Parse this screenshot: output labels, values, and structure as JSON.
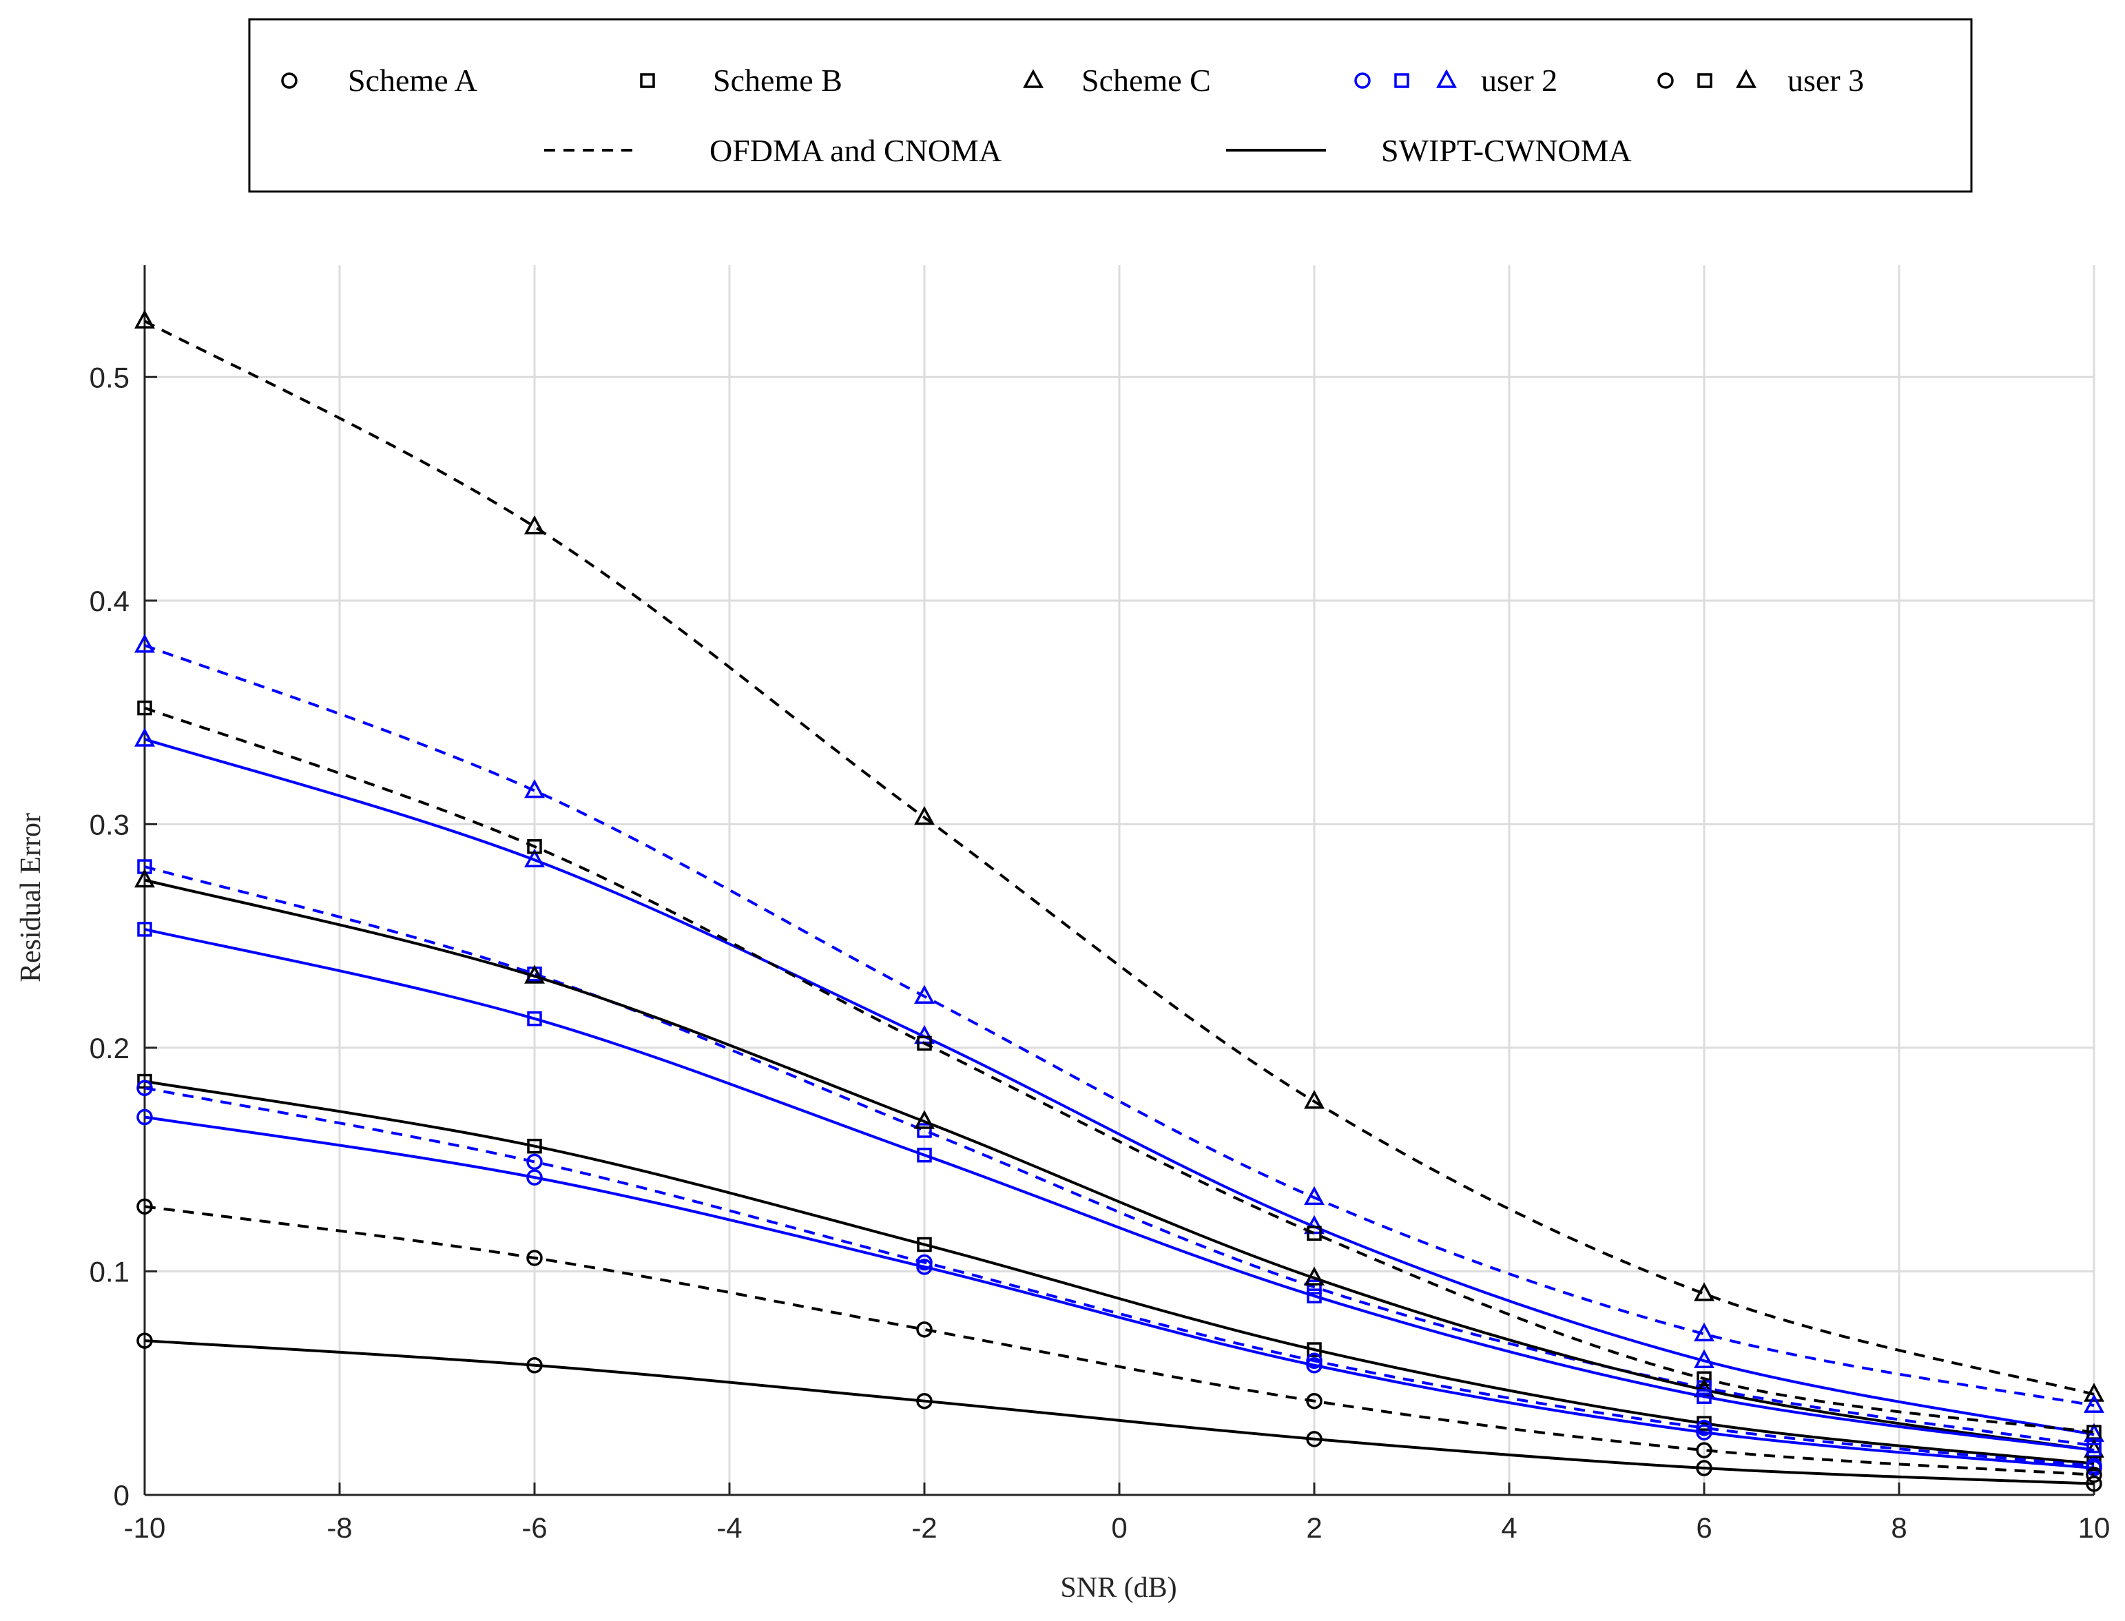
{
  "chart_data": {
    "type": "line",
    "title": "",
    "xlabel": "SNR (dB)",
    "ylabel": "Residual Error",
    "xlim": [
      -10,
      10
    ],
    "ylim": [
      0,
      0.55
    ],
    "grid": true,
    "x_ticks": [
      -10,
      -8,
      -6,
      -4,
      -2,
      0,
      2,
      4,
      6,
      8,
      10
    ],
    "x_tick_labels": [
      "-10",
      "-8",
      "-6",
      "-4",
      "-2",
      "0",
      "2",
      "4",
      "6",
      "8",
      "10"
    ],
    "y_ticks": [
      0,
      0.1,
      0.2,
      0.3,
      0.4,
      0.5
    ],
    "y_tick_labels": [
      "0",
      "0.1",
      "0.2",
      "0.3",
      "0.4",
      "0.5"
    ],
    "x": [
      -10,
      -6,
      -2,
      2,
      6,
      10
    ],
    "legend": {
      "placement": "top-outside",
      "entries": [
        {
          "label": "Scheme A",
          "markers": [
            "circle"
          ],
          "color": "#000000"
        },
        {
          "label": "Scheme B",
          "markers": [
            "square"
          ],
          "color": "#000000"
        },
        {
          "label": "Scheme C",
          "markers": [
            "triangle"
          ],
          "color": "#000000"
        },
        {
          "label": "user 2",
          "markers": [
            "circle",
            "square",
            "triangle"
          ],
          "color": "#0000ff"
        },
        {
          "label": "user 3",
          "markers": [
            "circle",
            "square",
            "triangle"
          ],
          "color": "#000000"
        },
        {
          "label": "OFDMA and CNOMA",
          "line": "dashed",
          "color": "#000000"
        },
        {
          "label": "SWIPT-CWNOMA",
          "line": "solid",
          "color": "#000000"
        }
      ]
    },
    "series": [
      {
        "name": "user 3, Scheme C, OFDMA and CNOMA",
        "user": 3,
        "scheme": "C",
        "method": "OFDMA and CNOMA",
        "color": "#000000",
        "dash": true,
        "marker": "triangle",
        "values": [
          0.525,
          0.433,
          0.303,
          0.176,
          0.09,
          0.045
        ]
      },
      {
        "name": "user 2, Scheme C, OFDMA and CNOMA",
        "user": 2,
        "scheme": "C",
        "method": "OFDMA and CNOMA",
        "color": "#0000ff",
        "dash": true,
        "marker": "triangle",
        "values": [
          0.38,
          0.315,
          0.223,
          0.133,
          0.072,
          0.04
        ]
      },
      {
        "name": "user 2, Scheme C, SWIPT-CWNOMA",
        "user": 2,
        "scheme": "C",
        "method": "SWIPT-CWNOMA",
        "color": "#0000ff",
        "dash": false,
        "marker": "triangle",
        "values": [
          0.338,
          0.284,
          0.205,
          0.12,
          0.06,
          0.027
        ]
      },
      {
        "name": "user 3, Scheme B, OFDMA and CNOMA",
        "user": 3,
        "scheme": "B",
        "method": "OFDMA and CNOMA",
        "color": "#000000",
        "dash": true,
        "marker": "square",
        "values": [
          0.352,
          0.29,
          0.202,
          0.117,
          0.052,
          0.028
        ]
      },
      {
        "name": "user 2, Scheme B, OFDMA and CNOMA",
        "user": 2,
        "scheme": "B",
        "method": "OFDMA and CNOMA",
        "color": "#0000ff",
        "dash": true,
        "marker": "square",
        "values": [
          0.281,
          0.233,
          0.163,
          0.093,
          0.048,
          0.022
        ]
      },
      {
        "name": "user 3, Scheme C, SWIPT-CWNOMA",
        "user": 3,
        "scheme": "C",
        "method": "SWIPT-CWNOMA",
        "color": "#000000",
        "dash": false,
        "marker": "triangle",
        "values": [
          0.275,
          0.232,
          0.167,
          0.097,
          0.047,
          0.02
        ]
      },
      {
        "name": "user 2, Scheme B, SWIPT-CWNOMA",
        "user": 2,
        "scheme": "B",
        "method": "SWIPT-CWNOMA",
        "color": "#0000ff",
        "dash": false,
        "marker": "square",
        "values": [
          0.253,
          0.213,
          0.152,
          0.089,
          0.044,
          0.02
        ]
      },
      {
        "name": "user 3, Scheme B, SWIPT-CWNOMA",
        "user": 3,
        "scheme": "B",
        "method": "SWIPT-CWNOMA",
        "color": "#000000",
        "dash": false,
        "marker": "square",
        "values": [
          0.185,
          0.156,
          0.112,
          0.065,
          0.032,
          0.014
        ]
      },
      {
        "name": "user 2, Scheme A, OFDMA and CNOMA",
        "user": 2,
        "scheme": "A",
        "method": "OFDMA and CNOMA",
        "color": "#0000ff",
        "dash": true,
        "marker": "circle",
        "values": [
          0.182,
          0.149,
          0.104,
          0.06,
          0.03,
          0.013
        ]
      },
      {
        "name": "user 2, Scheme A, SWIPT-CWNOMA",
        "user": 2,
        "scheme": "A",
        "method": "SWIPT-CWNOMA",
        "color": "#0000ff",
        "dash": false,
        "marker": "circle",
        "values": [
          0.169,
          0.142,
          0.102,
          0.058,
          0.028,
          0.012
        ]
      },
      {
        "name": "user 3, Scheme A, OFDMA and CNOMA",
        "user": 3,
        "scheme": "A",
        "method": "OFDMA and CNOMA",
        "color": "#000000",
        "dash": true,
        "marker": "circle",
        "values": [
          0.129,
          0.106,
          0.074,
          0.042,
          0.02,
          0.009
        ]
      },
      {
        "name": "user 3, Scheme A, SWIPT-CWNOMA",
        "user": 3,
        "scheme": "A",
        "method": "SWIPT-CWNOMA",
        "color": "#000000",
        "dash": false,
        "marker": "circle",
        "values": [
          0.069,
          0.058,
          0.042,
          0.025,
          0.012,
          0.005
        ]
      }
    ]
  }
}
